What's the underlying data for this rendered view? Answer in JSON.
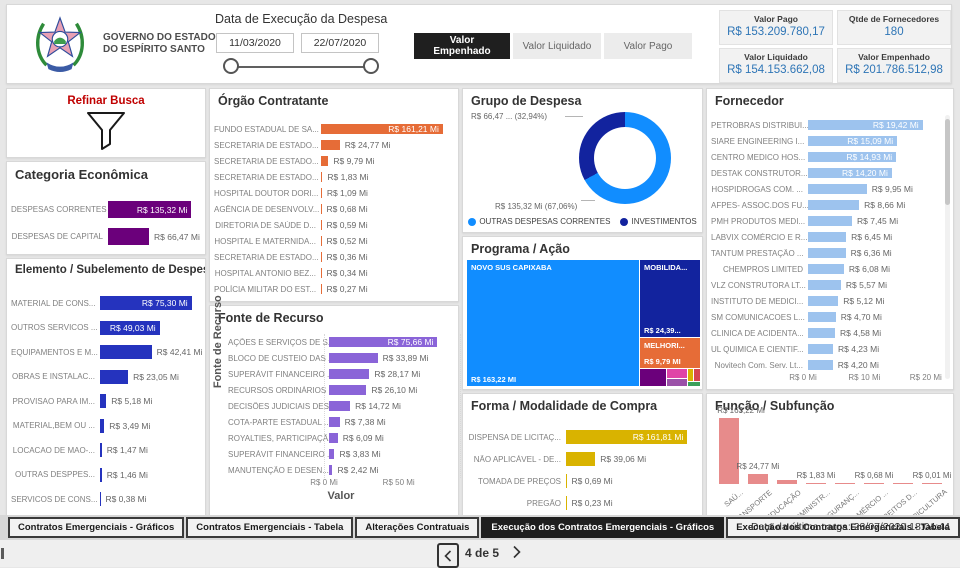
{
  "header": {
    "logo_caption_line1": "GOVERNO DO ESTADO",
    "logo_caption_line2": "DO ESPÍRITO SANTO",
    "slicer_title": "Data de Execução da Despesa",
    "date_start": "11/03/2020",
    "date_end": "22/07/2020",
    "measure_buttons": [
      {
        "label": "Valor Empenhado",
        "active": true
      },
      {
        "label": "Valor Liquidado",
        "active": false
      },
      {
        "label": "Valor Pago",
        "active": false
      }
    ],
    "kpis": [
      {
        "title": "Valor Pago",
        "value": "R$ 153.209.780,17"
      },
      {
        "title": "Qtde de Fornecedores",
        "value": "180"
      },
      {
        "title": "Valor Liquidado",
        "value": "R$ 154.153.662,08"
      },
      {
        "title": "Valor Empenhado",
        "value": "R$ 201.786.512,98"
      }
    ],
    "kpi_value_color": "#2E75B6"
  },
  "refine": {
    "title": "Refinar Busca",
    "title_color": "#C00000"
  },
  "charts": {
    "categoria": {
      "type": "bar",
      "title": "Categoria Econômica",
      "color": "#6B007B",
      "axis_max": 141,
      "rows": [
        {
          "label": "DESPESAS CORRENTES",
          "value": 135.32,
          "value_label": "R$ 135,32 Mi",
          "inside": true
        },
        {
          "label": "DESPESAS DE CAPITAL",
          "value": 66.47,
          "value_label": "R$ 66,47 Mi",
          "inside": false
        }
      ]
    },
    "elemento": {
      "type": "bar",
      "title": "Elemento / Subelemento de Despesa",
      "color": "#2533BE",
      "axis_max": 78,
      "rows": [
        {
          "label": "MATERIAL DE CONS...",
          "value": 75.3,
          "value_label": "R$ 75,30 Mi",
          "inside": true
        },
        {
          "label": "OUTROS SERVICOS ...",
          "value": 49.03,
          "value_label": "R$ 49,03 Mi",
          "inside": true
        },
        {
          "label": "EQUIPAMENTOS E M...",
          "value": 42.41,
          "value_label": "R$ 42,41 Mi",
          "inside": false
        },
        {
          "label": "OBRAS E INSTALAC...",
          "value": 23.05,
          "value_label": "R$ 23,05 Mi",
          "inside": false
        },
        {
          "label": "PROVISAO PARA IM...",
          "value": 5.18,
          "value_label": "R$ 5,18 Mi",
          "inside": false
        },
        {
          "label": "MATERIAL,BEM OU ...",
          "value": 3.49,
          "value_label": "R$ 3,49 Mi",
          "inside": false
        },
        {
          "label": "LOCACAO DE MAO-...",
          "value": 1.47,
          "value_label": "R$ 1,47 Mi",
          "inside": false
        },
        {
          "label": "OUTRAS DESPPES...",
          "value": 1.46,
          "value_label": "R$ 1,46 Mi",
          "inside": false
        },
        {
          "label": "SERVICOS DE CONS...",
          "value": 0.38,
          "value_label": "R$ 0,38 Mi",
          "inside": false
        }
      ]
    },
    "orgao": {
      "type": "bar",
      "title": "Órgão Contratante",
      "color": "#E66C37",
      "axis_max": 168,
      "rows": [
        {
          "label": "FUNDO ESTADUAL DE SA...",
          "value": 161.21,
          "value_label": "R$ 161,21 Mi",
          "inside": true
        },
        {
          "label": "SECRETARIA DE ESTADO...",
          "value": 24.77,
          "value_label": "R$ 24,77 Mi",
          "inside": false
        },
        {
          "label": "SECRETARIA DE ESTADO...",
          "value": 9.79,
          "value_label": "R$ 9,79 Mi",
          "inside": false
        },
        {
          "label": "SECRETARIA DE ESTADO...",
          "value": 1.83,
          "value_label": "R$ 1,83 Mi",
          "inside": false
        },
        {
          "label": "HOSPITAL DOUTOR DORI...",
          "value": 1.09,
          "value_label": "R$ 1,09 Mi",
          "inside": false
        },
        {
          "label": "AGÊNCIA DE DESENVOLV...",
          "value": 0.68,
          "value_label": "R$ 0,68 Mi",
          "inside": false
        },
        {
          "label": "DIRETORIA DE SAÚDE D...",
          "value": 0.59,
          "value_label": "R$ 0,59 Mi",
          "inside": false
        },
        {
          "label": "HOSPITAL E MATERNIDA...",
          "value": 0.52,
          "value_label": "R$ 0,52 Mi",
          "inside": false
        },
        {
          "label": "SECRETARIA DE ESTADO...",
          "value": 0.36,
          "value_label": "R$ 0,36 Mi",
          "inside": false
        },
        {
          "label": "HOSPITAL ANTONIO BEZ...",
          "value": 0.34,
          "value_label": "R$ 0,34 Mi",
          "inside": false
        },
        {
          "label": "POLÍCIA MILITAR DO EST...",
          "value": 0.27,
          "value_label": "R$ 0,27 Mi",
          "inside": false
        }
      ]
    },
    "fonte": {
      "type": "bar",
      "title": "Fonte de Recurso",
      "color": "#8A64D8",
      "axis_max": 83,
      "ylabel": "Fonte de Recurso",
      "xlabel": "Valor",
      "ticks": [
        {
          "label": "R$ 0 Mi",
          "value": 0
        },
        {
          "label": "R$ 50 Mi",
          "value": 50
        }
      ],
      "rows": [
        {
          "label": "AÇÕES E SERVIÇOS DE S...",
          "value": 75.66,
          "value_label": "R$ 75,66 Mi",
          "inside": true
        },
        {
          "label": "BLOCO DE CUSTEIO DAS ...",
          "value": 33.89,
          "value_label": "R$ 33,89 Mi",
          "inside": false
        },
        {
          "label": "SUPERÁVIT FINANCEIRO ...",
          "value": 28.17,
          "value_label": "R$ 28,17 Mi",
          "inside": false
        },
        {
          "label": "RECURSOS ORDINÁRIOS",
          "value": 26.1,
          "value_label": "R$ 26,10 Mi",
          "inside": false
        },
        {
          "label": "DECISÕES JUDICIAIS DES...",
          "value": 14.72,
          "value_label": "R$ 14,72 Mi",
          "inside": false
        },
        {
          "label": "COTA-PARTE ESTADUAL ...",
          "value": 7.38,
          "value_label": "R$ 7,38 Mi",
          "inside": false
        },
        {
          "label": "ROYALTIES, PARTICIPAÇÃ...",
          "value": 6.09,
          "value_label": "R$ 6,09 Mi",
          "inside": false
        },
        {
          "label": "SUPERÁVIT FINANCEIRO ...",
          "value": 3.83,
          "value_label": "R$ 3,83 Mi",
          "inside": false
        },
        {
          "label": "MANUTENÇÃO E DESEN...",
          "value": 2.42,
          "value_label": "R$ 2,42 Mi",
          "inside": false
        }
      ]
    },
    "grupo": {
      "type": "donut",
      "title": "Grupo de Despesa",
      "slices": [
        {
          "name": "OUTRAS DESPESAS CORRENTES",
          "pct": 67.06,
          "color": "#118DFF",
          "callout": "R$ 135,32 Mi (67,06%)"
        },
        {
          "name": "INVESTIMENTOS",
          "pct": 32.94,
          "color": "#12239E",
          "callout": "R$ 66,47 ... (32,94%)"
        }
      ]
    },
    "programa": {
      "type": "treemap",
      "title": "Programa / Ação",
      "items": [
        {
          "name": "NOVO SUS CAPIXABA",
          "value_label": "R$ 163,22 MI",
          "color": "#118DFF"
        },
        {
          "name": "MOBILIDA...",
          "value_label": "R$ 24,39...",
          "color": "#12239E"
        },
        {
          "name": "MELHORI...",
          "value_label": "R$ 9,79 MI",
          "color": "#E66C37"
        },
        {
          "name": "",
          "value_label": "",
          "color": "#6B007B"
        },
        {
          "name": "",
          "value_label": "",
          "color": "#E044A7"
        },
        {
          "name": "",
          "value_label": "",
          "color": "#9B51A8"
        },
        {
          "name": "",
          "value_label": "",
          "color": "#D9B300"
        },
        {
          "name": "",
          "value_label": "",
          "color": "#D64550"
        },
        {
          "name": "",
          "value_label": "",
          "color": "#3BA05B"
        }
      ]
    },
    "forma": {
      "type": "bar",
      "title": "Forma / Modalidade de Compra",
      "color": "#D9B300",
      "axis_max": 168,
      "rows": [
        {
          "label": "DISPENSA DE LICITAÇ...",
          "value": 161.81,
          "value_label": "R$ 161,81 Mi",
          "inside": true
        },
        {
          "label": "NÃO APLICÁVEL - DE...",
          "value": 39.06,
          "value_label": "R$ 39,06 Mi",
          "inside": false
        },
        {
          "label": "TOMADA DE PREÇOS",
          "value": 0.69,
          "value_label": "R$ 0,69 Mi",
          "inside": false
        },
        {
          "label": "PREGÃO",
          "value": 0.23,
          "value_label": "R$ 0,23 Mi",
          "inside": false
        }
      ]
    },
    "fornecedor": {
      "type": "bar",
      "title": "Fornecedor",
      "color": "#9DC3EE",
      "axis_max": 21.5,
      "ticks": [
        {
          "label": "R$ 0 Mi",
          "value": 0
        },
        {
          "label": "R$ 10 Mi",
          "value": 10
        },
        {
          "label": "R$ 20 Mi",
          "value": 20
        }
      ],
      "rows": [
        {
          "label": "PETROBRAS DISTRIBUI...",
          "value": 19.42,
          "value_label": "R$ 19,42 Mi",
          "inside": true
        },
        {
          "label": "SIARE ENGINEERING I...",
          "value": 15.09,
          "value_label": "R$ 15,09 Mi",
          "inside": true
        },
        {
          "label": "CENTRO MEDICO HOS...",
          "value": 14.93,
          "value_label": "R$ 14,93 Mi",
          "inside": true
        },
        {
          "label": "DESTAK CONSTRUTOR...",
          "value": 14.2,
          "value_label": "R$ 14,20 Mi",
          "inside": true
        },
        {
          "label": "HOSPIDROGAS COM. ...",
          "value": 9.95,
          "value_label": "R$ 9,95 Mi",
          "inside": false
        },
        {
          "label": "AFPES- ASSOC.DOS FU...",
          "value": 8.66,
          "value_label": "R$ 8,66 Mi",
          "inside": false
        },
        {
          "label": "PMH PRODUTOS MEDI...",
          "value": 7.45,
          "value_label": "R$ 7,45 Mi",
          "inside": false
        },
        {
          "label": "LABVIX COMÉRCIO E R...",
          "value": 6.45,
          "value_label": "R$ 6,45 Mi",
          "inside": false
        },
        {
          "label": "TANTUM PRESTAÇÃO ...",
          "value": 6.36,
          "value_label": "R$ 6,36 Mi",
          "inside": false
        },
        {
          "label": "CHEMPROS LIMITED",
          "value": 6.08,
          "value_label": "R$ 6,08 Mi",
          "inside": false
        },
        {
          "label": "VLZ CONSTRUTORA LT...",
          "value": 5.57,
          "value_label": "R$ 5,57 Mi",
          "inside": false
        },
        {
          "label": "INSTITUTO DE MEDICI...",
          "value": 5.12,
          "value_label": "R$ 5,12 Mi",
          "inside": false
        },
        {
          "label": "SM COMUNICACOES L...",
          "value": 4.7,
          "value_label": "R$ 4,70 Mi",
          "inside": false
        },
        {
          "label": "CLINICA DE ACIDENTA...",
          "value": 4.58,
          "value_label": "R$ 4,58 Mi",
          "inside": false
        },
        {
          "label": "UL QUIMICA E CIENTIF...",
          "value": 4.23,
          "value_label": "R$ 4,23 Mi",
          "inside": false
        },
        {
          "label": "Novitech Com. Serv. Lt...",
          "value": 4.2,
          "value_label": "R$ 4,20 Mi",
          "inside": false
        }
      ]
    },
    "funcao": {
      "type": "column",
      "title": "Função / Subfunção",
      "color": "#E78B8B",
      "axis_max": 163.22,
      "bars": [
        {
          "category": "SAÚ...",
          "value": 163.22,
          "value_label": "R$ 163,22 Mi"
        },
        {
          "category": "TRANSPORTE",
          "value": 24.77,
          "value_label": "R$ 24,77 Mi"
        },
        {
          "category": "EDUCAÇÃO",
          "value": 9.79,
          "value_label": ""
        },
        {
          "category": "ADMINISTR...",
          "value": 1.83,
          "value_label": "R$ 1,83 Mi"
        },
        {
          "category": "SEGURANÇ...",
          "value": 1.09,
          "value_label": ""
        },
        {
          "category": "COMÉRCIO ...",
          "value": 0.68,
          "value_label": "R$ 0,68 Mi"
        },
        {
          "category": "DIREITOS D...",
          "value": 0.59,
          "value_label": ""
        },
        {
          "category": "AGRICULTURA",
          "value": 0.01,
          "value_label": "R$ 0,01 Mi"
        }
      ]
    }
  },
  "tabs": [
    {
      "label": "Contratos Emergenciais - Gráficos",
      "active": false
    },
    {
      "label": "Contratos Emergenciais - Tabela",
      "active": false
    },
    {
      "label": "Alterações Contratuais",
      "active": false
    },
    {
      "label": "Execução dos Contratos Emergenciais - Gráficos",
      "active": true
    },
    {
      "label": "Execução dos Contratos Emergenciais - Tabela",
      "active": false
    }
  ],
  "footer": {
    "last_update": "Data da última carga: 23/07/2020 18:04:44",
    "page_indicator": "4 de 5"
  }
}
